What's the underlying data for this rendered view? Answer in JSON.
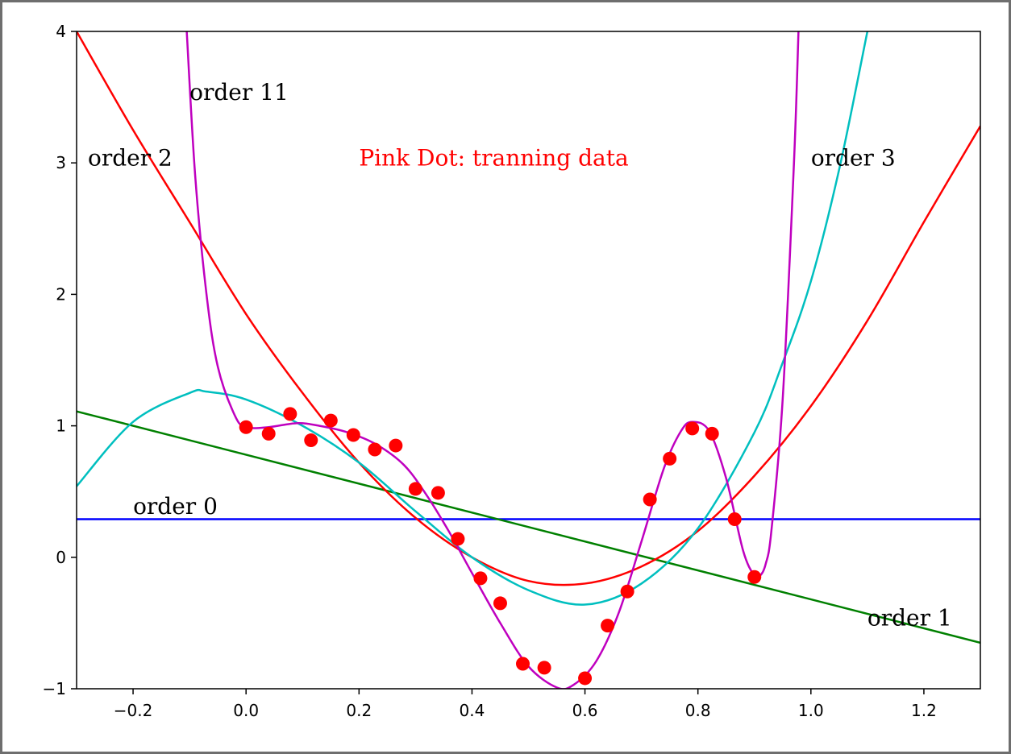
{
  "chart_data": {
    "type": "line",
    "xlim": [
      -0.3,
      1.3
    ],
    "ylim": [
      -1,
      4
    ],
    "grid": false,
    "legend": "none",
    "x_ticks": [
      -0.2,
      0.0,
      0.2,
      0.4,
      0.6,
      0.8,
      1.0,
      1.2
    ],
    "x_tick_labels": [
      "−0.2",
      "0.0",
      "0.2",
      "0.4",
      "0.6",
      "0.8",
      "1.0",
      "1.2"
    ],
    "y_ticks": [
      -1,
      0,
      1,
      2,
      3,
      4
    ],
    "y_tick_labels": [
      "−1",
      "0",
      "1",
      "2",
      "3",
      "4"
    ],
    "series": [
      {
        "color": "#0000ff",
        "x": [
          -0.3,
          1.3
        ],
        "y": [
          0.29,
          0.29
        ]
      },
      {
        "color": "#008000",
        "x": [
          -0.3,
          1.3
        ],
        "y": [
          1.11,
          -0.65
        ]
      },
      {
        "color": "#ff0000",
        "x": [
          -0.3,
          -0.2,
          -0.1,
          0.0,
          0.1,
          0.2,
          0.3,
          0.4,
          0.5,
          0.6,
          0.7,
          0.8,
          0.9,
          1.0,
          1.1,
          1.2,
          1.3
        ],
        "y": [
          4.0,
          3.25,
          2.55,
          1.85,
          1.25,
          0.72,
          0.3,
          0.0,
          -0.18,
          -0.2,
          -0.07,
          0.2,
          0.62,
          1.15,
          1.8,
          2.55,
          3.28
        ]
      },
      {
        "color": "#00bfbf",
        "x": [
          -0.3,
          -0.2,
          -0.1,
          -0.07,
          0.0,
          0.1,
          0.2,
          0.3,
          0.4,
          0.5,
          0.6,
          0.7,
          0.8,
          0.9,
          0.95,
          1.0,
          1.05,
          1.1
        ],
        "y": [
          0.54,
          1.03,
          1.25,
          1.26,
          1.2,
          1.0,
          0.72,
          0.35,
          0.0,
          -0.25,
          -0.36,
          -0.2,
          0.22,
          0.95,
          1.48,
          2.1,
          2.95,
          4.0
        ]
      },
      {
        "color": "#bf00bf",
        "x": [
          -0.105,
          -0.09,
          -0.07,
          -0.05,
          -0.02,
          0.0,
          0.04,
          0.09,
          0.13,
          0.18,
          0.23,
          0.28,
          0.32,
          0.36,
          0.4,
          0.45,
          0.5,
          0.55,
          0.58,
          0.62,
          0.66,
          0.7,
          0.74,
          0.77,
          0.79,
          0.82,
          0.85,
          0.88,
          0.9,
          0.91,
          0.92,
          0.93,
          0.95,
          0.97,
          0.978
        ],
        "y": [
          4.0,
          2.9,
          2.0,
          1.45,
          1.08,
          0.99,
          0.99,
          1.02,
          1.0,
          0.95,
          0.86,
          0.7,
          0.47,
          0.19,
          -0.12,
          -0.5,
          -0.83,
          -0.99,
          -0.97,
          -0.79,
          -0.42,
          0.12,
          0.68,
          0.96,
          1.03,
          0.96,
          0.6,
          0.05,
          -0.14,
          -0.14,
          -0.05,
          0.2,
          1.2,
          3.0,
          4.0
        ]
      }
    ],
    "points": {
      "color": "#ff0000",
      "x": [
        0.0,
        0.04,
        0.078,
        0.115,
        0.15,
        0.19,
        0.228,
        0.265,
        0.3,
        0.34,
        0.375,
        0.415,
        0.45,
        0.49,
        0.528,
        0.6,
        0.64,
        0.675,
        0.715,
        0.75,
        0.79,
        0.825,
        0.865,
        0.9
      ],
      "y": [
        0.99,
        0.94,
        1.09,
        0.89,
        1.04,
        0.93,
        0.82,
        0.85,
        0.52,
        0.49,
        0.14,
        -0.16,
        -0.35,
        -0.81,
        -0.84,
        -0.92,
        -0.52,
        -0.26,
        0.44,
        0.75,
        0.98,
        0.94,
        0.29,
        -0.15
      ]
    },
    "annotations": [
      {
        "text": "order 11",
        "x": -0.1,
        "y": 3.48,
        "color": "#000000"
      },
      {
        "text": "order 2",
        "x": -0.28,
        "y": 2.98,
        "color": "#000000"
      },
      {
        "text": "Pink Dot: tranning data",
        "x": 0.2,
        "y": 2.98,
        "color": "#ff0000"
      },
      {
        "text": "order 3",
        "x": 1.0,
        "y": 2.98,
        "color": "#000000"
      },
      {
        "text": "order 0",
        "x": -0.2,
        "y": 0.33,
        "color": "#000000"
      },
      {
        "text": "order 1",
        "x": 1.1,
        "y": -0.52,
        "color": "#000000"
      }
    ]
  }
}
